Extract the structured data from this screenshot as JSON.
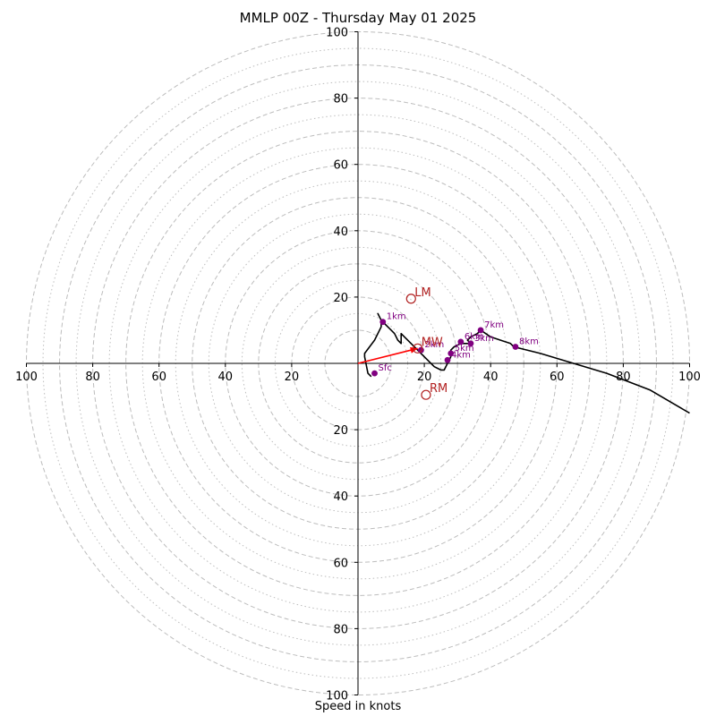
{
  "chart_data": {
    "type": "hodograph",
    "title": "MMLP 00Z - Thursday May 01 2025",
    "xlabel": "Speed in knots",
    "range": [
      -100,
      100
    ],
    "grid": true,
    "ring_major": [
      10,
      20,
      30,
      40,
      50,
      60,
      70,
      80,
      90,
      100
    ],
    "ring_minor": [
      15,
      25,
      35,
      45,
      55,
      65,
      75,
      85,
      95
    ],
    "tick_values": [
      20,
      40,
      60,
      80,
      100
    ],
    "hodograph": [
      [
        4,
        -4
      ],
      [
        3,
        -3
      ],
      [
        2,
        2
      ],
      [
        2,
        3
      ],
      [
        5,
        7
      ],
      [
        7,
        11
      ],
      [
        7,
        12
      ],
      [
        7,
        13
      ],
      [
        6,
        15
      ],
      [
        7,
        13
      ],
      [
        8,
        12
      ],
      [
        9,
        11
      ],
      [
        10,
        10
      ],
      [
        11,
        9
      ],
      [
        12,
        7
      ],
      [
        13,
        6
      ],
      [
        13,
        8
      ],
      [
        13,
        9
      ],
      [
        14,
        8
      ],
      [
        16,
        6
      ],
      [
        18,
        4
      ],
      [
        19,
        3
      ],
      [
        21,
        1
      ],
      [
        23,
        -1
      ],
      [
        25,
        -2
      ],
      [
        26,
        -2
      ],
      [
        27,
        0
      ],
      [
        28,
        2
      ],
      [
        28,
        4
      ],
      [
        29,
        5
      ],
      [
        31,
        6
      ],
      [
        34,
        6
      ],
      [
        33,
        7
      ],
      [
        34,
        8
      ],
      [
        36,
        9
      ],
      [
        37,
        10
      ],
      [
        40,
        8
      ],
      [
        43,
        7
      ],
      [
        46,
        6
      ],
      [
        47,
        5
      ],
      [
        55,
        3
      ],
      [
        65,
        0
      ],
      [
        75,
        -3
      ],
      [
        88,
        -8
      ],
      [
        100,
        -15
      ]
    ],
    "height_points": [
      {
        "label": "Sfc",
        "u": 5,
        "v": -3
      },
      {
        "label": "1km",
        "u": 7.5,
        "v": 12.5
      },
      {
        "label": "2km",
        "u": 19,
        "v": 4
      },
      {
        "label": "3km",
        "u": 34,
        "v": 6
      },
      {
        "label": "4km",
        "u": 27,
        "v": 1
      },
      {
        "label": "5km",
        "u": 28,
        "v": 3
      },
      {
        "label": "6km",
        "u": 31,
        "v": 6.5
      },
      {
        "label": "7km",
        "u": 37,
        "v": 10
      },
      {
        "label": "8km",
        "u": 47.5,
        "v": 5
      }
    ],
    "motion_points": [
      {
        "label": "LM",
        "u": 16,
        "v": 19.5
      },
      {
        "label": "MW",
        "u": 18,
        "v": 4.5
      },
      {
        "label": "RM",
        "u": 20.5,
        "v": -9.5
      }
    ],
    "mean_wind_arrow": {
      "from": [
        0,
        0
      ],
      "to": [
        18,
        4.5
      ]
    },
    "colors": {
      "hodograph": "#000000",
      "height_points": "#800080",
      "motion": "#b22222",
      "arrow": "#ff0000",
      "grid": "#bdbdbd",
      "axes": "#000000"
    }
  }
}
